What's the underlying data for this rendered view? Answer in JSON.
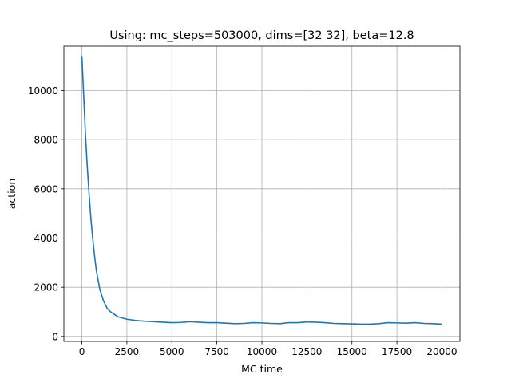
{
  "chart_data": {
    "type": "line",
    "title": "Using: mc_steps=503000, dims=[32 32], beta=12.8",
    "xlabel": "MC time",
    "ylabel": "action",
    "xlim": [
      -1000,
      21000
    ],
    "ylim": [
      -200,
      11800
    ],
    "xticks": [
      0,
      2500,
      5000,
      7500,
      10000,
      12500,
      15000,
      17500,
      20000
    ],
    "yticks": [
      0,
      2000,
      4000,
      6000,
      8000,
      10000
    ],
    "grid": true,
    "line_color": "#1f77b4",
    "series": [
      {
        "x": [
          0,
          100,
          200,
          300,
          400,
          500,
          600,
          700,
          800,
          900,
          1000,
          1200,
          1400,
          1600,
          1800,
          2000,
          2200,
          2500,
          3000,
          3500,
          4000,
          4500,
          5000,
          5500,
          6000,
          6500,
          7000,
          7500,
          8000,
          8500,
          9000,
          9500,
          10000,
          10500,
          11000,
          11500,
          12000,
          12500,
          13000,
          13500,
          14000,
          14500,
          15000,
          15500,
          16000,
          16500,
          17000,
          17500,
          18000,
          18500,
          19000,
          19500,
          20000
        ],
        "y": [
          11400,
          9800,
          8200,
          6900,
          5800,
          4800,
          4000,
          3300,
          2700,
          2300,
          1900,
          1450,
          1150,
          1000,
          900,
          800,
          760,
          700,
          650,
          620,
          600,
          580,
          560,
          570,
          600,
          580,
          560,
          560,
          540,
          520,
          530,
          560,
          550,
          530,
          520,
          560,
          560,
          590,
          580,
          560,
          530,
          520,
          510,
          500,
          500,
          520,
          560,
          550,
          540,
          560,
          530,
          520,
          500
        ]
      }
    ]
  }
}
